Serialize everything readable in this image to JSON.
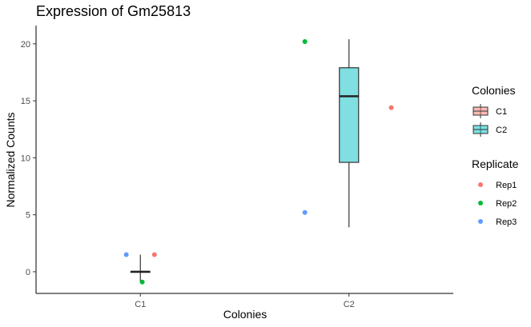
{
  "chart_data": {
    "type": "box",
    "title": "Expression of Gm25813",
    "xlabel": "Colonies",
    "ylabel": "Normalized Counts",
    "categories": [
      "C1",
      "C2"
    ],
    "ylim": [
      -1.9,
      21.6
    ],
    "yticks": [
      0,
      5,
      10,
      15,
      20
    ],
    "grid": false,
    "boxes": [
      {
        "category": "C1",
        "min": -0.9,
        "q1": 0.0,
        "median": 0.0,
        "q3": 0.0,
        "max": 1.5,
        "fill": "#F8766D"
      },
      {
        "category": "C2",
        "min": 3.9,
        "q1": 9.6,
        "median": 15.4,
        "q3": 17.9,
        "max": 20.4,
        "fill": "#00BFC4"
      }
    ],
    "points": [
      {
        "category": "C1",
        "replicate": "Rep1",
        "y": 1.5,
        "jitter": 0.15
      },
      {
        "category": "C1",
        "replicate": "Rep2",
        "y": -0.9,
        "jitter": 0.02
      },
      {
        "category": "C1",
        "replicate": "Rep3",
        "y": 1.5,
        "jitter": -0.15
      },
      {
        "category": "C2",
        "replicate": "Rep1",
        "y": 14.4,
        "jitter": 0.45
      },
      {
        "category": "C2",
        "replicate": "Rep2",
        "y": 20.2,
        "jitter": -0.47
      },
      {
        "category": "C2",
        "replicate": "Rep3",
        "y": 5.2,
        "jitter": -0.47
      }
    ],
    "legends": [
      {
        "title": "Colonies",
        "kind": "box",
        "items": [
          {
            "label": "C1",
            "color": "#F8766D"
          },
          {
            "label": "C2",
            "color": "#00BFC4"
          }
        ]
      },
      {
        "title": "Replicate",
        "kind": "point",
        "items": [
          {
            "label": "Rep1",
            "color": "#F8766D"
          },
          {
            "label": "Rep2",
            "color": "#00BA38"
          },
          {
            "label": "Rep3",
            "color": "#619CFF"
          }
        ]
      }
    ],
    "legend_position": "right"
  }
}
